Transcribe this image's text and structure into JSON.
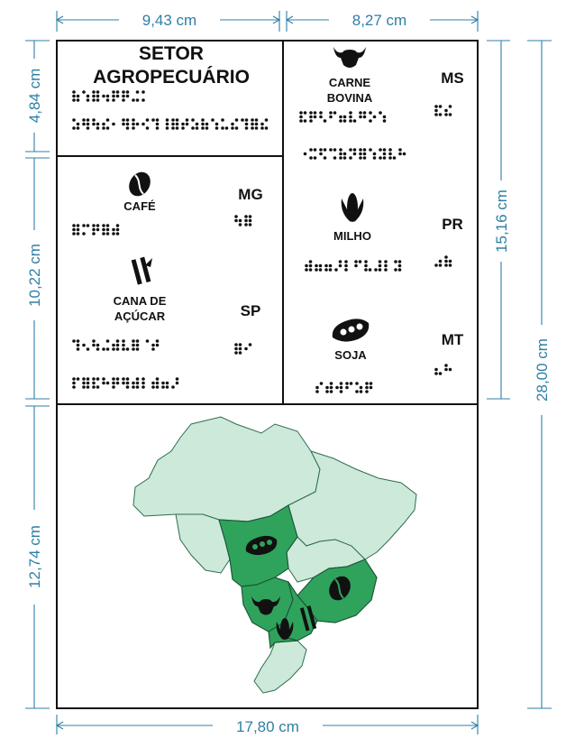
{
  "dimensions": {
    "top_left": "9,43 cm",
    "top_right": "8,27 cm",
    "left_1": "4,84 cm",
    "left_2": "10,22 cm",
    "left_3": "12,74 cm",
    "right_upper": "15,16 cm",
    "right_total": "28,00 cm",
    "bottom": "17,80 cm"
  },
  "title": {
    "line1": "SETOR",
    "line2": "AGROPECUÁRIO"
  },
  "products": [
    {
      "name_lines": [
        "CAFÉ"
      ],
      "state": "MG",
      "icon": "coffee-bean-icon"
    },
    {
      "name_lines": [
        "CANA DE",
        "AÇÚCAR"
      ],
      "state": "SP",
      "icon": "sugarcane-icon"
    },
    {
      "name_lines": [
        "CARNE",
        "BOVINA"
      ],
      "state": "MS",
      "icon": "cattle-icon"
    },
    {
      "name_lines": [
        "MILHO"
      ],
      "state": "PR",
      "icon": "corn-icon"
    },
    {
      "name_lines": [
        "SOJA"
      ],
      "state": "MT",
      "icon": "soybean-icon"
    }
  ],
  "map": {
    "highlighted_states": [
      "MT",
      "MS",
      "MG",
      "SP",
      "PR"
    ],
    "highlight_color": "#2fa35c",
    "base_color": "#cde9da"
  },
  "colors": {
    "dimension": "#2f7fa6",
    "frame": "#111111"
  }
}
